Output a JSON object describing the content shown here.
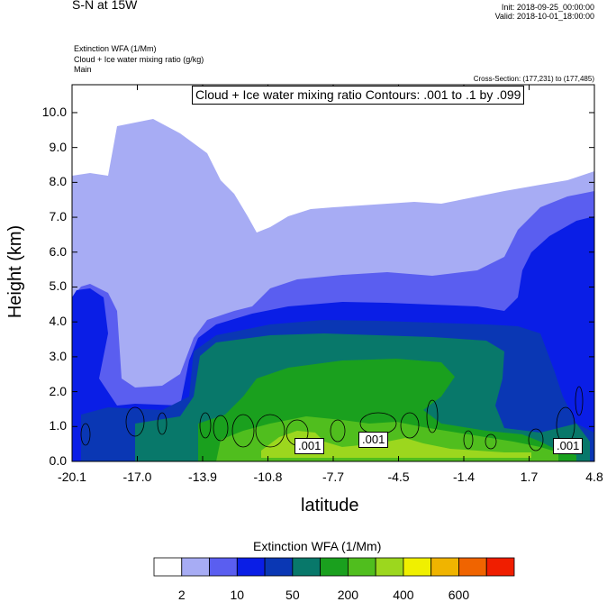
{
  "header": {
    "title": "S-N at 15W",
    "init": "Init: 2018-09-25_00:00:00",
    "valid": "Valid: 2018-10-01_18:00:00",
    "field1": "Extinction WFA   (1/Mm)",
    "field2": "Cloud + Ice water mixing ratio   (g/kg)",
    "field3": "Main",
    "cross_section": "Cross-Section: (177,231) to (177,485)"
  },
  "contour_box": "Cloud + Ice water mixing ratio Contours: .001 to .1 by .099",
  "contour_labels": [
    ".001",
    ".001",
    ".001"
  ],
  "colorbar": {
    "title": "Extinction WFA  (1/Mm)",
    "labels": [
      "2",
      "10",
      "50",
      "200",
      "400",
      "600"
    ],
    "colors": [
      "#ffffff",
      "#a7acf4",
      "#5a5ef0",
      "#0a1ee6",
      "#0a37b4",
      "#08786a",
      "#1aa01e",
      "#50be1e",
      "#9cd71e",
      "#f0f000",
      "#f0b400",
      "#f06400",
      "#f01e00"
    ]
  },
  "chart_data": {
    "type": "heatmap",
    "title": "S-N at 15W",
    "xlabel": "latitude",
    "ylabel": "Height (km)",
    "xlim": [
      -20.1,
      4.8
    ],
    "ylim": [
      0.0,
      10.8
    ],
    "x_ticks": [
      "-20.1",
      "-17.0",
      "-13.9",
      "-10.8",
      "-7.7",
      "-4.5",
      "-1.4",
      "1.7",
      "4.8"
    ],
    "y_ticks": [
      "0.0",
      "1.0",
      "2.0",
      "3.0",
      "4.0",
      "5.0",
      "6.0",
      "7.0",
      "8.0",
      "9.0",
      "10.0"
    ],
    "filled_field": "Extinction WFA (1/Mm)",
    "contour_field": "Cloud + Ice water mixing ratio (g/kg)",
    "contour_levels": [
      0.001,
      0.1
    ],
    "contour_step": 0.099,
    "colorbar_levels": [
      "2",
      "10",
      "50",
      "200",
      "400",
      "600"
    ]
  }
}
